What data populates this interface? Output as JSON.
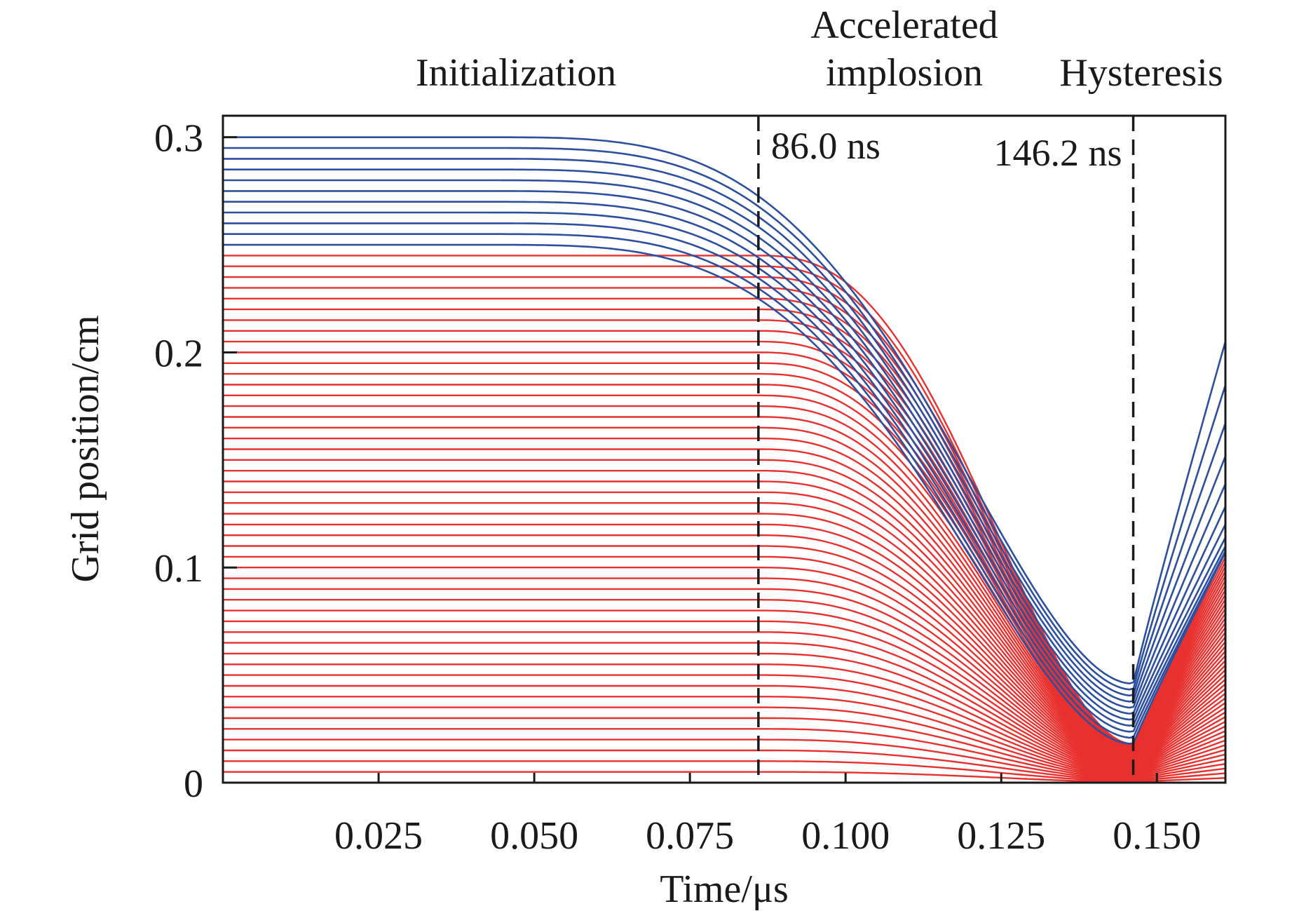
{
  "chart_data": {
    "type": "line",
    "title": "",
    "xlabel": "Time/μs",
    "ylabel": "Grid position/cm",
    "xlim": [
      0,
      0.161
    ],
    "ylim": [
      0,
      0.31
    ],
    "x_ticks": [
      "0.025",
      "0.050",
      "0.075",
      "0.100",
      "0.125",
      "0.150"
    ],
    "x_tick_values": [
      0.025,
      0.05,
      0.075,
      0.1,
      0.125,
      0.15
    ],
    "y_ticks": [
      "0",
      "0.1",
      "0.2",
      "0.3"
    ],
    "y_tick_values": [
      0,
      0.1,
      0.2,
      0.3
    ],
    "grid": false,
    "legend": "none",
    "phase_labels": {
      "initialization": "Initialization",
      "accelerated_line1": "Accelerated",
      "accelerated_line2": "implosion",
      "hysteresis": "Hysteresis"
    },
    "markers": [
      {
        "x": 0.086,
        "label": "86.0 ns"
      },
      {
        "x": 0.1462,
        "label": "146.2 ns"
      }
    ],
    "series": [
      {
        "group": "outer",
        "color": "#2c4fa0",
        "count": 11,
        "initial_positions": [
          0.25,
          0.255,
          0.26,
          0.265,
          0.27,
          0.275,
          0.28,
          0.285,
          0.29,
          0.295,
          0.3
        ],
        "min_position_at_146_2ns": [
          0.018,
          0.046
        ],
        "final_position_at_0_161us": [
          0.107,
          0.205
        ]
      },
      {
        "group": "inner",
        "color": "#e8302e",
        "count": 50,
        "initial_positions_range": [
          0.0,
          0.245
        ],
        "min_position_at_146_2ns": [
          0.0,
          0.018
        ],
        "final_position_at_0_161us": [
          0.0,
          0.107
        ]
      }
    ],
    "colors": {
      "outer_lines": "#2c4fa0",
      "inner_lines": "#e8302e",
      "axes": "#1a1a1a"
    }
  }
}
